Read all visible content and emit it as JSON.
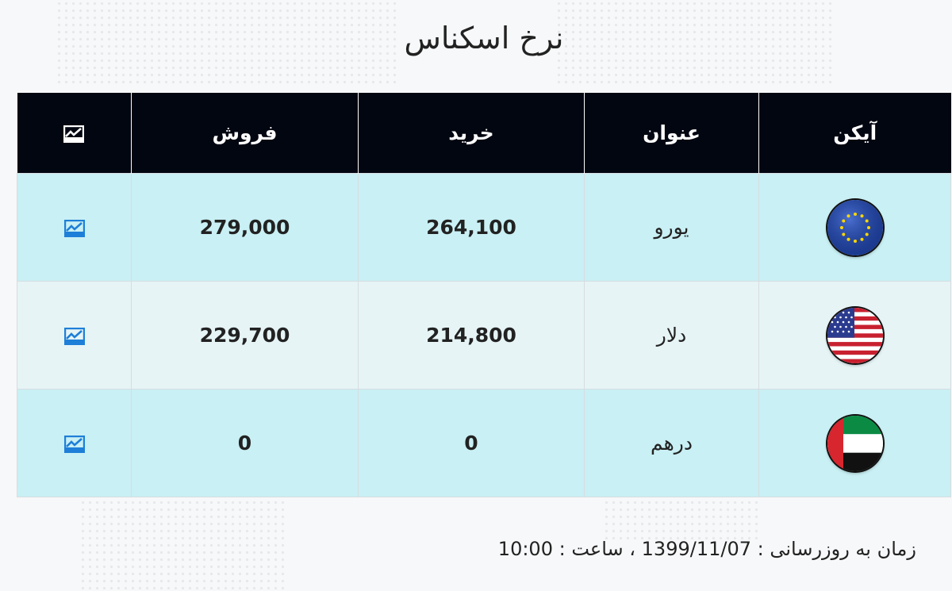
{
  "title": "نرخ اسکناس",
  "table": {
    "headers": {
      "icon": "آیکن",
      "name": "عنوان",
      "buy": "خرید",
      "sell": "فروش",
      "chart_icon": "chart-icon"
    },
    "rows": [
      {
        "flag": "eu-flag-icon",
        "name": "یورو",
        "buy": "264,100",
        "sell": "279,000",
        "chart_icon": "chart-icon"
      },
      {
        "flag": "us-flag-icon",
        "name": "دلار",
        "buy": "214,800",
        "sell": "229,700",
        "chart_icon": "chart-icon"
      },
      {
        "flag": "uae-flag-icon",
        "name": "درهم",
        "buy": "0",
        "sell": "0",
        "chart_icon": "chart-icon"
      }
    ]
  },
  "footer": {
    "label": "زمان به روزرسانی :",
    "date": "1399/11/07",
    "sep": "، ساعت :",
    "time": "10:00"
  },
  "colors": {
    "header_bg": "#020611",
    "row_light": "#c9f0f4",
    "row_alt": "#e6f4f6",
    "chart_icon_blue": "#1e7fd8"
  }
}
